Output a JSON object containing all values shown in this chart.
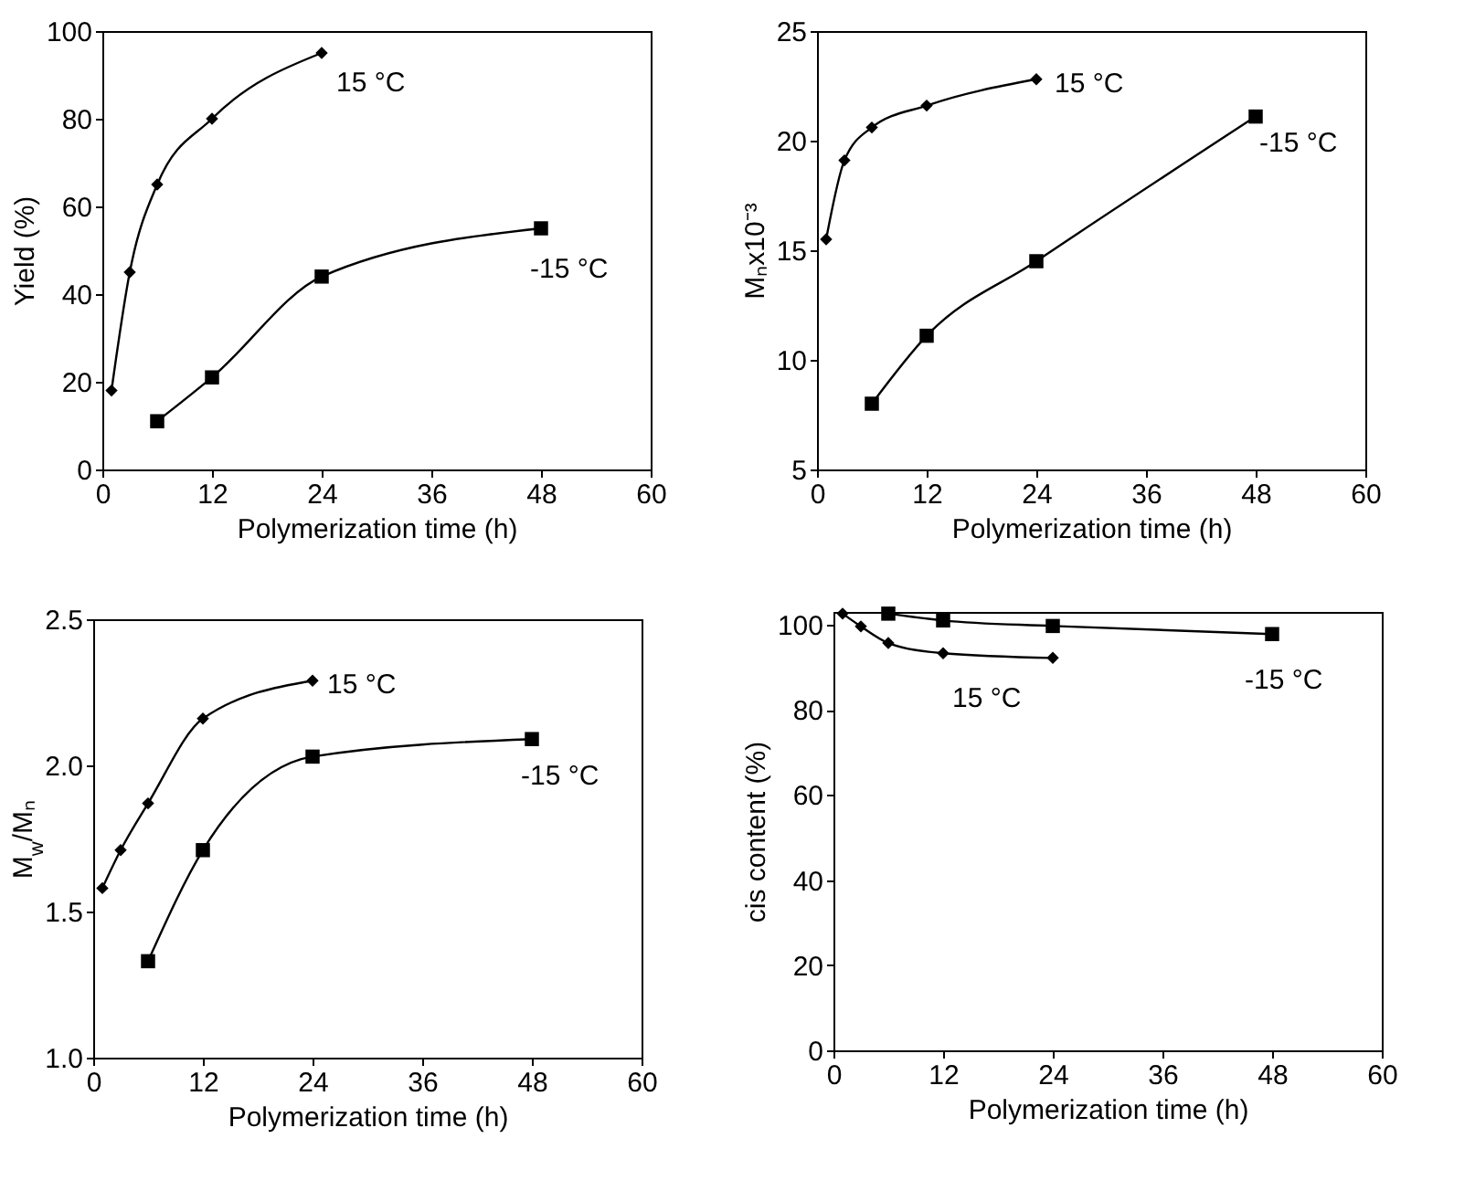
{
  "chart_data": [
    {
      "type": "line",
      "ylabel": "Yield (%)",
      "xlabel": "Polymerization time (h)",
      "xlim": [
        0,
        60
      ],
      "xticks": [
        0,
        12,
        24,
        36,
        48,
        60
      ],
      "ylim": [
        0,
        100
      ],
      "yticks": [
        0,
        20,
        40,
        60,
        80,
        100
      ],
      "series": [
        {
          "name": "15 °C",
          "color": "#000000",
          "marker": "diamond",
          "x": [
            1,
            3,
            6,
            12,
            24
          ],
          "values": [
            18,
            45,
            65,
            80,
            95
          ]
        },
        {
          "name": "-15 °C",
          "color": "#000000",
          "marker": "square",
          "x": [
            6,
            12,
            24,
            48
          ],
          "values": [
            11,
            21,
            44,
            55
          ]
        }
      ]
    },
    {
      "type": "line",
      "ylabel": "Mₙx10⁻³",
      "xlabel": "Polymerization time (h)",
      "xlim": [
        0,
        60
      ],
      "xticks": [
        0,
        12,
        24,
        36,
        48,
        60
      ],
      "ylim": [
        5,
        25
      ],
      "yticks": [
        5,
        10,
        15,
        20,
        25
      ],
      "series": [
        {
          "name": "15 °C",
          "color": "#000000",
          "marker": "diamond",
          "x": [
            1,
            3,
            6,
            12,
            24
          ],
          "values": [
            15.5,
            19.1,
            20.6,
            21.6,
            22.8
          ]
        },
        {
          "name": "-15 °C",
          "color": "#000000",
          "marker": "square",
          "x": [
            6,
            12,
            24,
            48
          ],
          "values": [
            8.0,
            11.1,
            14.5,
            21.1
          ]
        }
      ]
    },
    {
      "type": "line",
      "ylabel": "M$_{w}$/Mₙ",
      "xlabel": "Polymerization time (h)",
      "xlim": [
        0,
        60
      ],
      "xticks": [
        0,
        12,
        24,
        36,
        48,
        60
      ],
      "ylim": [
        1.0,
        2.5
      ],
      "yticks": [
        {
          "value": 1,
          "label": "1.0"
        },
        "1.5",
        {
          "value": 2,
          "label": "2.0"
        },
        2.5
      ],
      "series": [
        {
          "name": "15 °C",
          "color": "#000000",
          "marker": "diamond",
          "x": [
            1,
            3,
            6,
            12,
            24
          ],
          "values": [
            1.58,
            1.71,
            1.87,
            2.16,
            2.29
          ]
        },
        {
          "name": "-15 °C",
          "color": "#000000",
          "marker": "square",
          "x": [
            6,
            12,
            24,
            48
          ],
          "values": [
            1.33,
            1.71,
            2.03,
            2.09
          ]
        }
      ]
    },
    {
      "type": "line",
      "ylabel": "cis content (%)",
      "xlabel": "Polymerization time (h)",
      "xlim": [
        0,
        60
      ],
      "xticks": [
        0,
        12,
        24,
        36,
        48,
        60
      ],
      "ylim": [
        0,
        103
      ],
      "yticks": [
        0,
        20,
        40,
        60,
        80,
        100
      ],
      "series": [
        {
          "name": "15 °C",
          "color": "#000000",
          "marker": "diamond",
          "x": [
            1,
            3,
            6,
            12,
            24
          ],
          "values": [
            102.6,
            99.6,
            95.7,
            93.3,
            92.2
          ]
        },
        {
          "name": "-15 °C",
          "color": "#000000",
          "marker": "square",
          "x": [
            6,
            12,
            24,
            48
          ],
          "values": [
            102.6,
            101,
            99.7,
            97.8
          ]
        }
      ]
    }
  ]
}
